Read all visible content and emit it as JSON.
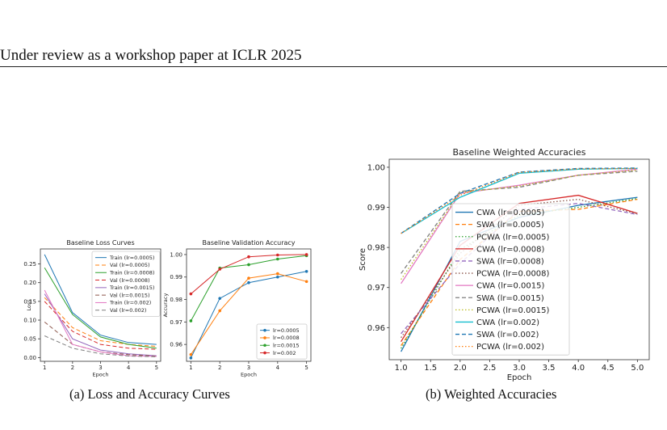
{
  "header": {
    "text": "Under review as a workshop paper at ICLR 2025"
  },
  "captions": {
    "a": "(a) Loss and Accuracy Curves",
    "b": "(b) Weighted Accuracies"
  },
  "chart_data": [
    {
      "type": "line",
      "title": "Baseline Loss Curves",
      "xlabel": "Epoch",
      "ylabel": "Loss",
      "xlim": [
        0.85,
        5.15
      ],
      "ylim": [
        -0.01,
        0.29
      ],
      "xticks": [
        1,
        2,
        3,
        4,
        5
      ],
      "yticks": [
        0.0,
        0.05,
        0.1,
        0.15,
        0.2,
        0.25
      ],
      "ytick_labels": [
        "0.00",
        "0.05",
        "0.10",
        "0.15",
        "0.20",
        "0.25"
      ],
      "legend_position": "upper right",
      "x": [
        1,
        2,
        3,
        4,
        5
      ],
      "series": [
        {
          "name": "Train (lr=0.0005)",
          "color": "#1f77b4",
          "dash": "solid",
          "values": [
            0.275,
            0.12,
            0.06,
            0.04,
            0.035
          ]
        },
        {
          "name": "Val (lr=0.0005)",
          "color": "#ff7f0e",
          "dash": "dashed",
          "values": [
            0.16,
            0.08,
            0.045,
            0.035,
            0.03
          ]
        },
        {
          "name": "Train (lr=0.0008)",
          "color": "#2ca02c",
          "dash": "solid",
          "values": [
            0.24,
            0.115,
            0.055,
            0.035,
            0.025
          ]
        },
        {
          "name": "Val (lr=0.0008)",
          "color": "#d62728",
          "dash": "dashed",
          "values": [
            0.15,
            0.07,
            0.035,
            0.025,
            0.022
          ]
        },
        {
          "name": "Train (lr=0.0015)",
          "color": "#9467bd",
          "dash": "solid",
          "values": [
            0.17,
            0.05,
            0.02,
            0.01,
            0.005
          ]
        },
        {
          "name": "Val (lr=0.0015)",
          "color": "#8c564b",
          "dash": "dashed",
          "values": [
            0.095,
            0.035,
            0.015,
            0.008,
            0.004
          ]
        },
        {
          "name": "Train (lr=0.002)",
          "color": "#e377c2",
          "dash": "solid",
          "values": [
            0.18,
            0.035,
            0.015,
            0.005,
            0.003
          ]
        },
        {
          "name": "Val (lr=0.002)",
          "color": "#7f7f7f",
          "dash": "dashed",
          "values": [
            0.058,
            0.025,
            0.01,
            0.004,
            0.002
          ]
        }
      ]
    },
    {
      "type": "line",
      "title": "Baseline Validation Accuracy",
      "xlabel": "Epoch",
      "ylabel": "Accuracy",
      "xlim": [
        0.85,
        5.15
      ],
      "ylim": [
        0.9525,
        1.0025
      ],
      "xticks": [
        1,
        2,
        3,
        4,
        5
      ],
      "yticks": [
        0.96,
        0.97,
        0.98,
        0.99,
        1.0
      ],
      "ytick_labels": [
        "0.96",
        "0.97",
        "0.98",
        "0.99",
        "1.00"
      ],
      "legend_position": "lower right",
      "markers": true,
      "x": [
        1,
        2,
        3,
        4,
        5
      ],
      "series": [
        {
          "name": "lr=0.0005",
          "color": "#1f77b4",
          "dash": "solid",
          "values": [
            0.954,
            0.9805,
            0.9875,
            0.99,
            0.9925
          ]
        },
        {
          "name": "lr=0.0008",
          "color": "#ff7f0e",
          "dash": "solid",
          "values": [
            0.9555,
            0.975,
            0.9895,
            0.9915,
            0.988
          ]
        },
        {
          "name": "lr=0.0015",
          "color": "#2ca02c",
          "dash": "solid",
          "values": [
            0.9705,
            0.994,
            0.9955,
            0.998,
            0.9995
          ]
        },
        {
          "name": "lr=0.002",
          "color": "#d62728",
          "dash": "solid",
          "values": [
            0.9825,
            0.9935,
            0.999,
            0.9998,
            1.0
          ]
        }
      ]
    },
    {
      "type": "line",
      "title": "Baseline Weighted Accuracies",
      "xlabel": "Epoch",
      "ylabel": "Score",
      "xlim": [
        0.8,
        5.2
      ],
      "ylim": [
        0.952,
        1.002
      ],
      "xticks": [
        1.0,
        1.5,
        2.0,
        2.5,
        3.0,
        3.5,
        4.0,
        4.5,
        5.0
      ],
      "xtick_labels": [
        "1.0",
        "1.5",
        "2.0",
        "2.5",
        "3.0",
        "3.5",
        "4.0",
        "4.5",
        "5.0"
      ],
      "yticks": [
        0.96,
        0.97,
        0.98,
        0.99,
        1.0
      ],
      "ytick_labels": [
        "0.96",
        "0.97",
        "0.98",
        "0.99",
        "1.00"
      ],
      "legend_position": "center",
      "x": [
        1,
        2,
        3,
        4,
        5
      ],
      "series": [
        {
          "name": "CWA (lr=0.0005)",
          "color": "#1f77b4",
          "dash": "solid",
          "values": [
            0.954,
            0.9815,
            0.9875,
            0.9905,
            0.9925
          ]
        },
        {
          "name": "SWA (lr=0.0005)",
          "color": "#ff7f0e",
          "dash": "dashed",
          "values": [
            0.9555,
            0.977,
            0.989,
            0.9895,
            0.992
          ]
        },
        {
          "name": "PCWA (lr=0.0005)",
          "color": "#2ca02c",
          "dash": "dotted",
          "values": [
            0.9548,
            0.9795,
            0.988,
            0.99,
            0.9922
          ]
        },
        {
          "name": "CWA (lr=0.0008)",
          "color": "#d62728",
          "dash": "solid",
          "values": [
            0.9565,
            0.9805,
            0.991,
            0.993,
            0.9885
          ]
        },
        {
          "name": "SWA (lr=0.0008)",
          "color": "#9467bd",
          "dash": "dashed",
          "values": [
            0.9585,
            0.976,
            0.9895,
            0.991,
            0.9882
          ]
        },
        {
          "name": "PCWA (lr=0.0008)",
          "color": "#8c564b",
          "dash": "dotted",
          "values": [
            0.9575,
            0.9785,
            0.9905,
            0.992,
            0.9884
          ]
        },
        {
          "name": "CWA (lr=0.0015)",
          "color": "#e377c2",
          "dash": "solid",
          "values": [
            0.971,
            0.9935,
            0.9955,
            0.998,
            0.9995
          ]
        },
        {
          "name": "SWA (lr=0.0015)",
          "color": "#7f7f7f",
          "dash": "dashed",
          "values": [
            0.9735,
            0.994,
            0.995,
            0.998,
            0.999
          ]
        },
        {
          "name": "PCWA (lr=0.0015)",
          "color": "#bcbd22",
          "dash": "dotted",
          "values": [
            0.972,
            0.9937,
            0.9953,
            0.998,
            0.9993
          ]
        },
        {
          "name": "CWA (lr=0.002)",
          "color": "#17becf",
          "dash": "solid",
          "values": [
            0.9835,
            0.9925,
            0.9985,
            0.9995,
            0.9997
          ]
        },
        {
          "name": "SWA (lr=0.002)",
          "color": "#1f77b4",
          "dash": "dashed",
          "values": [
            0.9835,
            0.9935,
            0.9988,
            0.9997,
            0.9998
          ]
        },
        {
          "name": "PCWA (lr=0.002)",
          "color": "#ff7f0e",
          "dash": "dotted",
          "values": [
            0.9835,
            0.993,
            0.9987,
            0.9996,
            0.9997
          ]
        }
      ]
    }
  ]
}
